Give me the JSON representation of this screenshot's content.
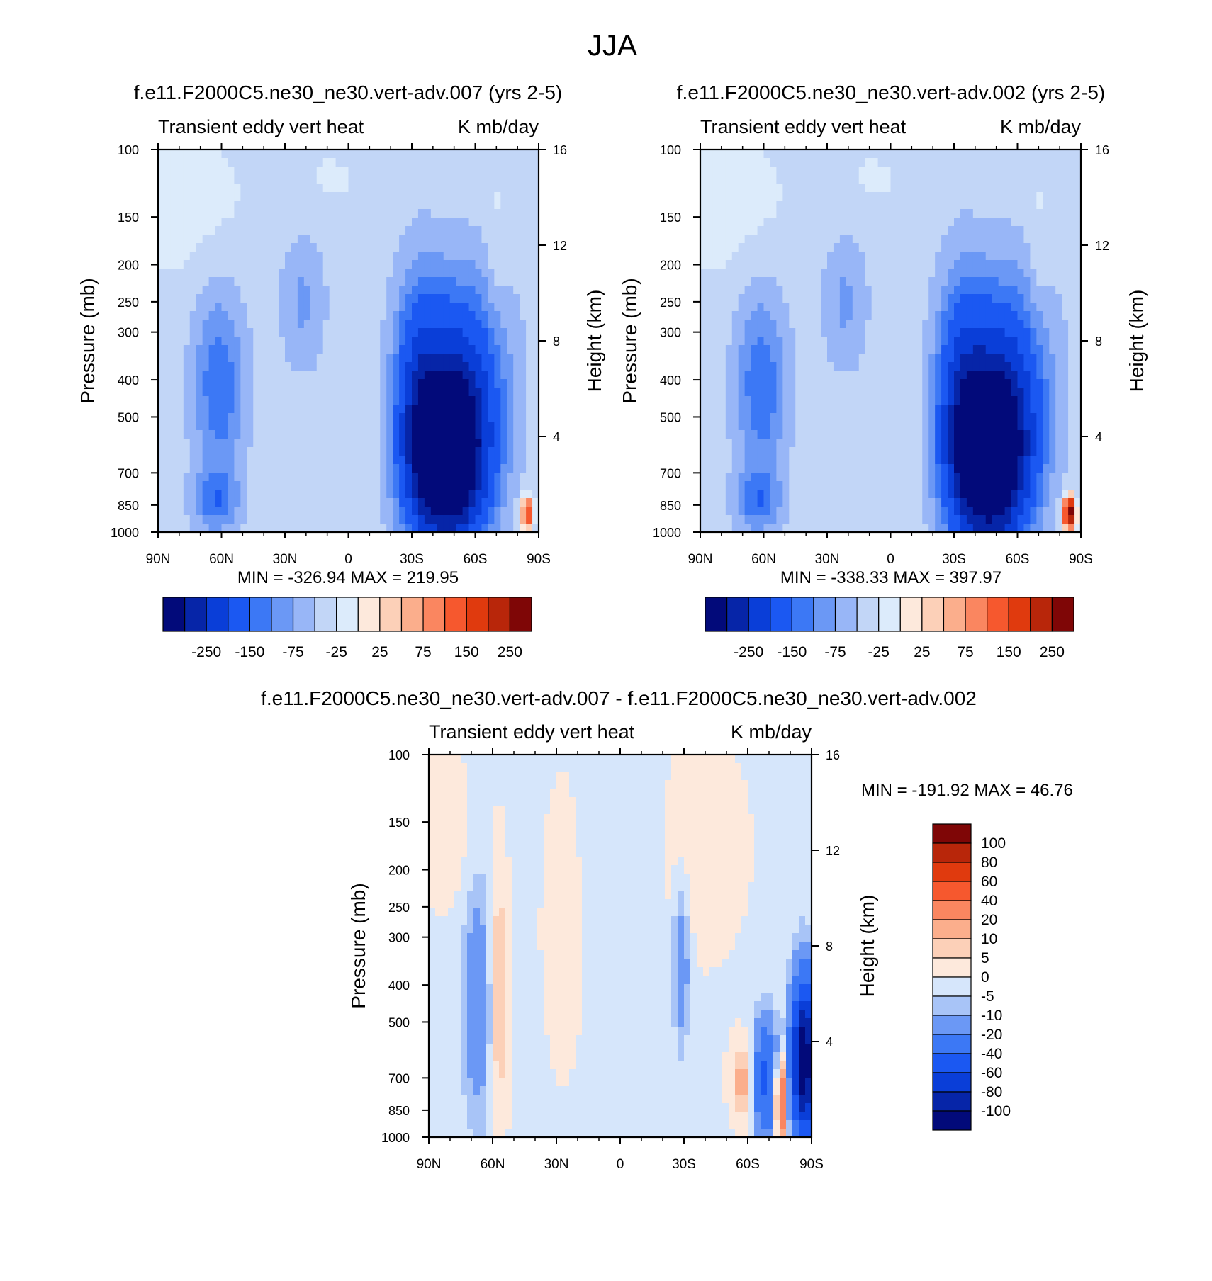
{
  "figure_title": "JJA",
  "colors": {
    "top_levels": [
      "#020a7a",
      "#0625a8",
      "#0a3ed8",
      "#1b58f2",
      "#3c78f5",
      "#6b98f5",
      "#98b6f7",
      "#c2d6f7",
      "#dcebfb",
      "#fde9dc",
      "#fcd0b8",
      "#fbae8c",
      "#fa8660",
      "#f6582e",
      "#e03a0e",
      "#b8260a",
      "#7f0606"
    ],
    "diff_levels": [
      "#020a7a",
      "#0625a8",
      "#0a3ed8",
      "#1b58f2",
      "#3c78f5",
      "#6b98f5",
      "#a8c4f7",
      "#d6e6fb",
      "#fde9dc",
      "#fcd0b8",
      "#fbae8c",
      "#fa8660",
      "#f6582e",
      "#e03a0e",
      "#b8260a",
      "#7f0606"
    ]
  },
  "chart_data": [
    {
      "type": "heatmap",
      "title": "f.e11.F2000C5.ne30_ne30.vert-adv.007 (yrs 2-5)",
      "left_subtitle": "Transient eddy vert heat",
      "right_subtitle": "K mb/day",
      "xlabel": "",
      "ylabel": "Pressure (mb)",
      "y2label": "Height (km)",
      "x_ticks": [
        "90N",
        "60N",
        "30N",
        "0",
        "30S",
        "60S",
        "90S"
      ],
      "y_ticks": [
        "100",
        "150",
        "200",
        "250",
        "300",
        "400",
        "500",
        "700",
        "850",
        "1000"
      ],
      "y2_ticks": [
        "16",
        "12",
        "8",
        "4"
      ],
      "stats": "MIN = -326.94  MAX = 219.95",
      "colorbar_labels": [
        "-250",
        "-150",
        "-75",
        "-25",
        "25",
        "75",
        "150",
        "250"
      ],
      "min": -326.94,
      "max": 219.95
    },
    {
      "type": "heatmap",
      "title": "f.e11.F2000C5.ne30_ne30.vert-adv.002 (yrs 2-5)",
      "left_subtitle": "Transient eddy vert heat",
      "right_subtitle": "K mb/day",
      "xlabel": "",
      "ylabel": "Pressure (mb)",
      "y2label": "Height (km)",
      "x_ticks": [
        "90N",
        "60N",
        "30N",
        "0",
        "30S",
        "60S",
        "90S"
      ],
      "y_ticks": [
        "100",
        "150",
        "200",
        "250",
        "300",
        "400",
        "500",
        "700",
        "850",
        "1000"
      ],
      "y2_ticks": [
        "16",
        "12",
        "8",
        "4"
      ],
      "stats": "MIN = -338.33  MAX = 397.97",
      "colorbar_labels": [
        "-250",
        "-150",
        "-75",
        "-25",
        "25",
        "75",
        "150",
        "250"
      ],
      "min": -338.33,
      "max": 397.97
    },
    {
      "type": "heatmap",
      "title": "f.e11.F2000C5.ne30_ne30.vert-adv.007 - f.e11.F2000C5.ne30_ne30.vert-adv.002",
      "left_subtitle": "Transient eddy vert heat",
      "right_subtitle": "K mb/day",
      "xlabel": "",
      "ylabel": "Pressure (mb)",
      "y2label": "Height (km)",
      "x_ticks": [
        "90N",
        "60N",
        "30N",
        "0",
        "30S",
        "60S",
        "90S"
      ],
      "y_ticks": [
        "100",
        "150",
        "200",
        "250",
        "300",
        "400",
        "500",
        "700",
        "850",
        "1000"
      ],
      "y2_ticks": [
        "16",
        "12",
        "8",
        "4"
      ],
      "stats": "MIN = -191.92  MAX =  46.76",
      "colorbar_labels": [
        "100",
        "80",
        "60",
        "40",
        "20",
        "10",
        "5",
        "0",
        "-5",
        "-10",
        "-20",
        "-40",
        "-60",
        "-80",
        "-100"
      ],
      "min": -191.92,
      "max": 46.76
    }
  ]
}
